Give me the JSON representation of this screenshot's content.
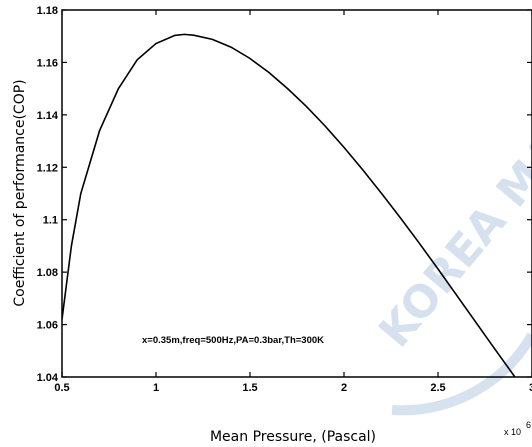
{
  "chart_data": {
    "type": "line",
    "xlabel": "Mean Pressure, (Pascal)",
    "ylabel": "Coefficient of performance(COP)",
    "x_multiplier": "x 10",
    "x_multiplier_exp": "6",
    "annotation": "x=0.35m,freq=500Hz,PA=0.3bar,Th=300K",
    "xlim": [
      0.5,
      3
    ],
    "ylim": [
      1.04,
      1.18
    ],
    "x_ticks": [
      "0.5",
      "1",
      "1.5",
      "2",
      "2.5",
      "3"
    ],
    "y_ticks": [
      "1.04",
      "1.06",
      "1.08",
      "1.1",
      "1.12",
      "1.14",
      "1.16",
      "1.18"
    ],
    "grid": false,
    "series": [
      {
        "color": "#000000",
        "x": [
          0.5,
          0.55,
          0.6,
          0.7,
          0.8,
          0.9,
          1.0,
          1.1,
          1.15,
          1.2,
          1.3,
          1.4,
          1.5,
          1.6,
          1.7,
          1.8,
          1.9,
          2.0,
          2.1,
          2.2,
          2.3,
          2.4,
          2.5,
          2.6,
          2.7,
          2.8,
          2.9,
          3.0
        ],
        "y": [
          1.062,
          1.09,
          1.11,
          1.134,
          1.15,
          1.161,
          1.1672,
          1.1703,
          1.1707,
          1.1704,
          1.1688,
          1.1658,
          1.1615,
          1.1562,
          1.15,
          1.1432,
          1.1357,
          1.1276,
          1.119,
          1.11,
          1.1007,
          1.0911,
          1.0812,
          1.0711,
          1.061,
          1.0509,
          1.0409,
          1.031
        ]
      }
    ]
  },
  "watermark": "KOREA MARITIME"
}
